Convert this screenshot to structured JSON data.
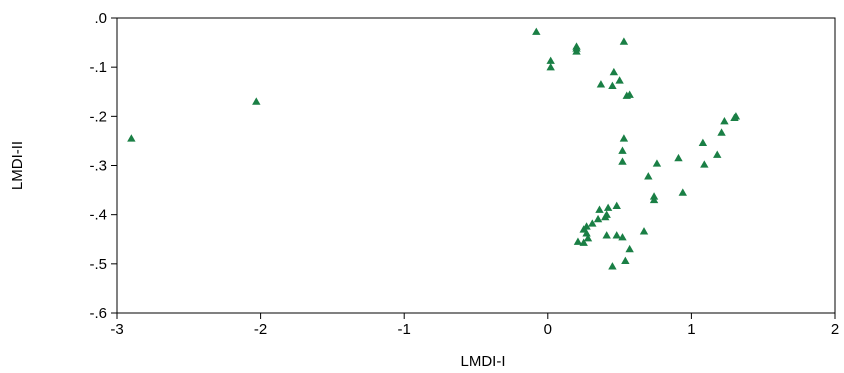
{
  "chart_data": {
    "type": "scatter",
    "title": "",
    "xlabel": "LMDI-I",
    "ylabel": "LMDI-II",
    "xlim": [
      -3,
      2
    ],
    "ylim": [
      -0.6,
      0.0
    ],
    "xticks": [
      -3,
      -2,
      -1,
      0,
      1,
      2
    ],
    "xtick_labels": [
      "-3",
      "-2",
      "-1",
      "0",
      "1",
      "2"
    ],
    "yticks": [
      0.0,
      -0.1,
      -0.2,
      -0.3,
      -0.4,
      -0.5,
      -0.6
    ],
    "ytick_labels": [
      ".0",
      "-.1",
      "-.2",
      "-.3",
      "-.4",
      "-.5",
      "-.6"
    ],
    "grid": false,
    "legend": "none",
    "marker": "triangle",
    "marker_color": "#1a7f45",
    "series": [
      {
        "points": [
          [
            -2.9,
            -0.245
          ],
          [
            -2.03,
            -0.17
          ],
          [
            -0.08,
            -0.028
          ],
          [
            0.02,
            -0.087
          ],
          [
            0.02,
            -0.1
          ],
          [
            0.2,
            -0.058
          ],
          [
            0.2,
            -0.062
          ],
          [
            0.2,
            -0.068
          ],
          [
            0.53,
            -0.048
          ],
          [
            0.46,
            -0.11
          ],
          [
            0.5,
            -0.127
          ],
          [
            0.45,
            -0.138
          ],
          [
            0.37,
            -0.135
          ],
          [
            0.55,
            -0.158
          ],
          [
            0.57,
            -0.156
          ],
          [
            1.31,
            -0.2
          ],
          [
            1.3,
            -0.203
          ],
          [
            1.23,
            -0.21
          ],
          [
            1.21,
            -0.233
          ],
          [
            1.08,
            -0.254
          ],
          [
            1.18,
            -0.278
          ],
          [
            1.09,
            -0.298
          ],
          [
            0.91,
            -0.285
          ],
          [
            0.76,
            -0.296
          ],
          [
            0.7,
            -0.322
          ],
          [
            0.53,
            -0.245
          ],
          [
            0.52,
            -0.27
          ],
          [
            0.52,
            -0.292
          ],
          [
            0.74,
            -0.363
          ],
          [
            0.74,
            -0.37
          ],
          [
            0.94,
            -0.355
          ],
          [
            0.48,
            -0.382
          ],
          [
            0.42,
            -0.386
          ],
          [
            0.36,
            -0.39
          ],
          [
            0.41,
            -0.4
          ],
          [
            0.4,
            -0.405
          ],
          [
            0.35,
            -0.409
          ],
          [
            0.31,
            -0.418
          ],
          [
            0.27,
            -0.424
          ],
          [
            0.25,
            -0.43
          ],
          [
            0.27,
            -0.438
          ],
          [
            0.28,
            -0.448
          ],
          [
            0.41,
            -0.442
          ],
          [
            0.48,
            -0.442
          ],
          [
            0.52,
            -0.446
          ],
          [
            0.67,
            -0.434
          ],
          [
            0.21,
            -0.455
          ],
          [
            0.25,
            -0.457
          ],
          [
            0.57,
            -0.47
          ],
          [
            0.54,
            -0.494
          ],
          [
            0.45,
            -0.505
          ]
        ]
      }
    ]
  }
}
